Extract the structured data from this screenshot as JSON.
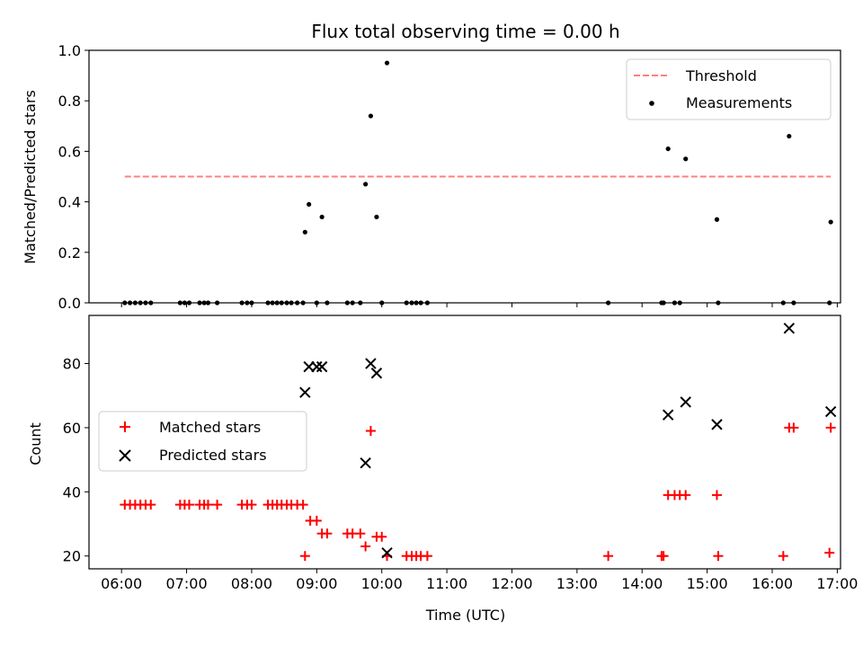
{
  "chart_data": [
    {
      "type": "scatter",
      "title": "Flux total observing time = 0.00 h",
      "xlabel": "",
      "ylabel": "Matched/Predicted stars",
      "xlim": [
        5.5,
        17.05
      ],
      "ylim": [
        0.0,
        1.0
      ],
      "xticks": [
        6,
        7,
        8,
        9,
        10,
        11,
        12,
        13,
        14,
        15,
        16,
        17
      ],
      "yticks": [
        0.0,
        0.2,
        0.4,
        0.6,
        0.8,
        1.0
      ],
      "ytick_labels": [
        "0.0",
        "0.2",
        "0.4",
        "0.6",
        "0.8",
        "1.0"
      ],
      "legend_position": "upper right",
      "series": [
        {
          "name": "Threshold",
          "kind": "line",
          "style": "dashed",
          "color": "#ff7f7f",
          "x": [
            6.05,
            16.9
          ],
          "y": [
            0.5,
            0.5
          ]
        },
        {
          "name": "Measurements",
          "kind": "scatter",
          "marker": "dot",
          "color": "#000000",
          "x": [
            6.05,
            6.13,
            6.21,
            6.29,
            6.37,
            6.45,
            6.9,
            6.97,
            7.04,
            7.2,
            7.27,
            7.33,
            7.47,
            7.85,
            7.93,
            8.0,
            8.25,
            8.32,
            8.39,
            8.46,
            8.54,
            8.61,
            8.7,
            8.79,
            8.82,
            8.88,
            9.0,
            9.08,
            9.16,
            9.47,
            9.55,
            9.67,
            9.75,
            9.83,
            9.92,
            10.0,
            10.08,
            10.38,
            10.46,
            10.53,
            10.6,
            10.7,
            13.48,
            14.3,
            14.33,
            14.4,
            14.5,
            14.58,
            14.67,
            15.15,
            15.17,
            16.17,
            16.26,
            16.33,
            16.88,
            16.9
          ],
          "y": [
            0,
            0,
            0,
            0,
            0,
            0,
            0,
            0,
            0,
            0,
            0,
            0,
            0,
            0,
            0,
            0,
            0,
            0,
            0,
            0,
            0,
            0,
            0,
            0,
            0.28,
            0.39,
            0,
            0.34,
            0,
            0,
            0,
            0,
            0.47,
            0.74,
            0.34,
            0,
            0.95,
            0,
            0,
            0,
            0,
            0,
            0,
            0,
            0,
            0.61,
            0,
            0,
            0.57,
            0.33,
            0,
            0,
            0.66,
            0,
            0,
            0.32
          ]
        }
      ]
    },
    {
      "type": "scatter",
      "title": "",
      "xlabel": "Time (UTC)",
      "ylabel": "Count",
      "xlim": [
        5.5,
        17.05
      ],
      "ylim": [
        16,
        95
      ],
      "xticks": [
        6,
        7,
        8,
        9,
        10,
        11,
        12,
        13,
        14,
        15,
        16,
        17
      ],
      "xtick_labels": [
        "06:00",
        "07:00",
        "08:00",
        "09:00",
        "10:00",
        "11:00",
        "12:00",
        "13:00",
        "14:00",
        "15:00",
        "16:00",
        "17:00"
      ],
      "yticks": [
        20,
        40,
        60,
        80
      ],
      "ytick_labels": [
        "20",
        "40",
        "60",
        "80"
      ],
      "legend_position": "center left",
      "series": [
        {
          "name": "Matched stars",
          "kind": "scatter",
          "marker": "plus",
          "color": "#ff0000",
          "x": [
            6.05,
            6.13,
            6.21,
            6.29,
            6.37,
            6.45,
            6.9,
            6.97,
            7.04,
            7.2,
            7.27,
            7.33,
            7.47,
            7.85,
            7.93,
            8.0,
            8.25,
            8.32,
            8.39,
            8.46,
            8.54,
            8.61,
            8.7,
            8.79,
            8.82,
            8.9,
            9.0,
            9.08,
            9.16,
            9.47,
            9.55,
            9.67,
            9.75,
            9.83,
            9.92,
            10.0,
            10.08,
            10.38,
            10.46,
            10.53,
            10.6,
            10.7,
            13.48,
            14.3,
            14.33,
            14.4,
            14.5,
            14.58,
            14.67,
            15.15,
            15.17,
            16.17,
            16.26,
            16.33,
            16.88,
            16.9
          ],
          "y": [
            36,
            36,
            36,
            36,
            36,
            36,
            36,
            36,
            36,
            36,
            36,
            36,
            36,
            36,
            36,
            36,
            36,
            36,
            36,
            36,
            36,
            36,
            36,
            36,
            20,
            31,
            31,
            27,
            27,
            27,
            27,
            27,
            23,
            59,
            26,
            26,
            20,
            20,
            20,
            20,
            20,
            20,
            20,
            20,
            20,
            39,
            39,
            39,
            39,
            39,
            20,
            20,
            60,
            60,
            21,
            60
          ]
        },
        {
          "name": "Predicted stars",
          "kind": "scatter",
          "marker": "x",
          "color": "#000000",
          "x": [
            8.82,
            8.88,
            9.0,
            9.08,
            9.75,
            9.83,
            9.92,
            10.08,
            14.4,
            14.67,
            15.15,
            16.26,
            16.9
          ],
          "y": [
            71,
            79,
            79,
            79,
            49,
            80,
            77,
            21,
            64,
            68,
            61,
            91,
            65
          ]
        }
      ]
    }
  ]
}
